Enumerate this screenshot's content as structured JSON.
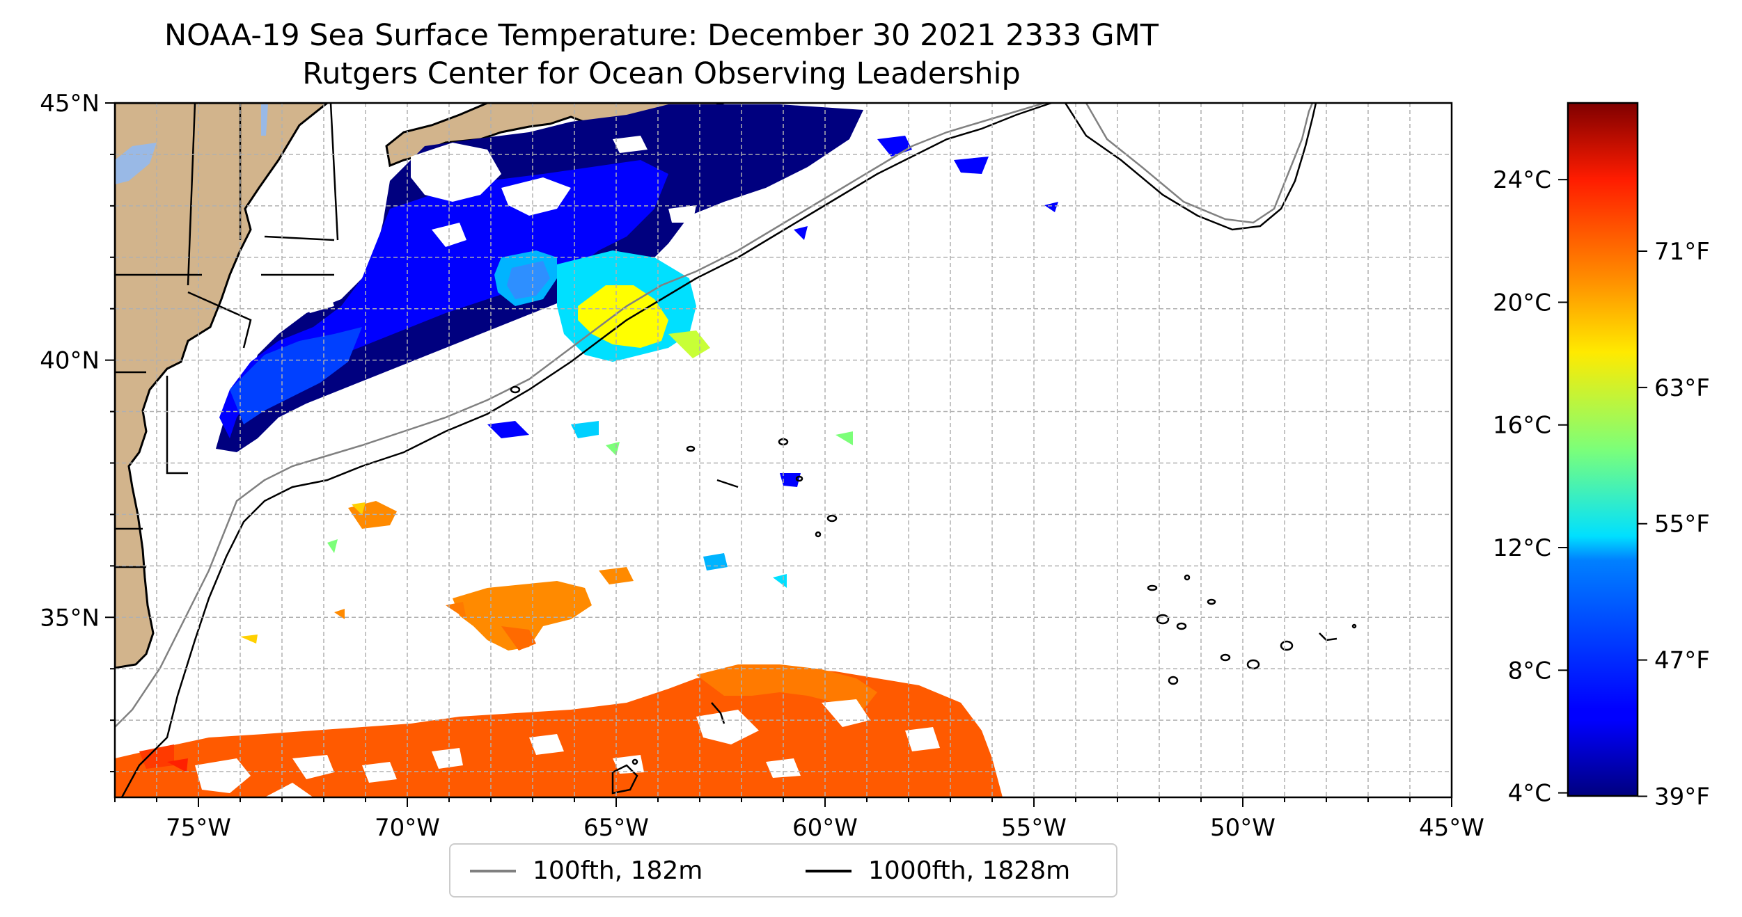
{
  "title": {
    "line1": "NOAA-19 Sea Surface Temperature: December 30 2021 2333 GMT",
    "line2": "Rutgers Center for Ocean Observing Leadership"
  },
  "map": {
    "lon_range": [
      -77,
      -45
    ],
    "lat_range": [
      31.5,
      45
    ],
    "lon_ticks": [
      -75,
      -70,
      -65,
      -60,
      -55,
      -50,
      -45
    ],
    "lon_tick_labels": [
      "75°W",
      "70°W",
      "65°W",
      "60°W",
      "55°W",
      "50°W",
      "45°W"
    ],
    "lat_ticks": [
      35,
      40,
      45
    ],
    "lat_tick_labels": [
      "35°N",
      "40°N",
      "45°N"
    ],
    "grid": true,
    "land_color": "#d2b48c",
    "lake_color": "#99b9e6"
  },
  "colorbar": {
    "colormap": "jet",
    "range_c": [
      3.9,
      26.5
    ],
    "celsius_ticks": [
      4,
      8,
      12,
      16,
      20,
      24
    ],
    "celsius_labels": [
      "4°C",
      "8°C",
      "12°C",
      "16°C",
      "20°C",
      "24°C"
    ],
    "fahrenheit_ticks": [
      39,
      47,
      55,
      63,
      71
    ],
    "fahrenheit_labels": [
      "39°F",
      "47°F",
      "55°F",
      "63°F",
      "71°F"
    ]
  },
  "legend": {
    "items": [
      {
        "label": "100fth, 182m",
        "color": "#808080"
      },
      {
        "label": "1000fth, 1828m",
        "color": "#000000"
      }
    ]
  }
}
